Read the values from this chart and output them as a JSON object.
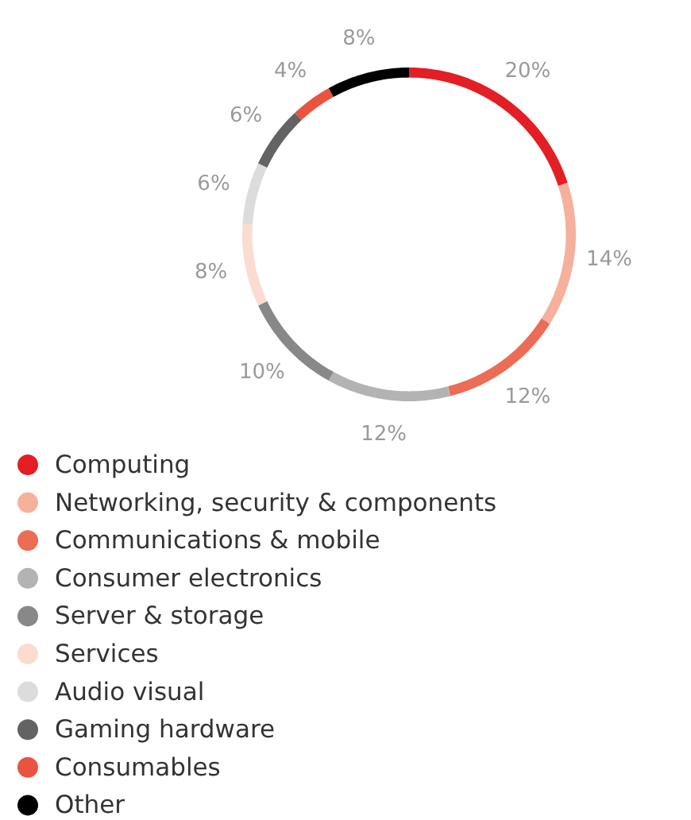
{
  "chart_data": {
    "type": "donut",
    "categories": [
      "Computing",
      "Networking, security & components",
      "Communications & mobile",
      "Consumer electronics",
      "Server & storage",
      "Services",
      "Audio visual",
      "Gaming hardware",
      "Consumables",
      "Other"
    ],
    "values": [
      20,
      14,
      12,
      12,
      10,
      8,
      6,
      6,
      4,
      8
    ],
    "colors": [
      "#e31e24",
      "#f5b19c",
      "#ec6c55",
      "#b3b3b3",
      "#888888",
      "#fcdcd0",
      "#dcdcdc",
      "#636363",
      "#ea5340",
      "#000000"
    ],
    "value_labels": [
      "20%",
      "14%",
      "12%",
      "12%",
      "10%",
      "8%",
      "6%",
      "6%",
      "4%",
      "8%"
    ],
    "legend": "bottom"
  }
}
